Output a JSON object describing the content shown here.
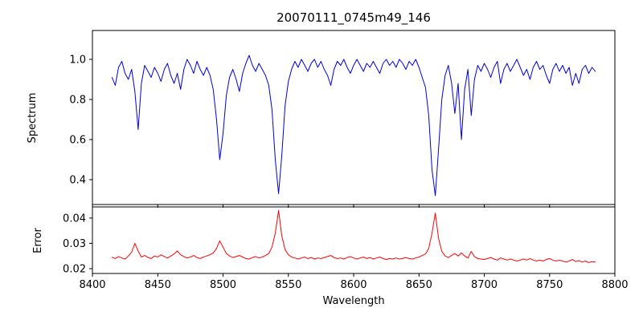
{
  "chart_data": {
    "type": "line",
    "title": "20070111_0745m49_146",
    "xlabel": "Wavelength",
    "xlim": [
      8400,
      8800
    ],
    "xticks": [
      8400,
      8450,
      8500,
      8550,
      8600,
      8650,
      8700,
      8750,
      8800
    ],
    "xticklabels": [
      "8400",
      "8450",
      "8500",
      "8550",
      "8600",
      "8650",
      "8700",
      "8750",
      "8800"
    ],
    "grid": false,
    "legend": "none",
    "x": [
      8415,
      8417.5,
      8420,
      8422.5,
      8425,
      8427.5,
      8430,
      8432.5,
      8435,
      8437.5,
      8440,
      8442.5,
      8445,
      8447.5,
      8450,
      8452.5,
      8455,
      8457.5,
      8460,
      8462.5,
      8465,
      8467.5,
      8470,
      8472.5,
      8475,
      8477.5,
      8480,
      8482.5,
      8485,
      8487.5,
      8490,
      8492.5,
      8495,
      8497.5,
      8500,
      8502.5,
      8505,
      8507.5,
      8510,
      8512.5,
      8515,
      8517.5,
      8520,
      8522.5,
      8525,
      8527.5,
      8530,
      8532.5,
      8535,
      8537.5,
      8540,
      8542.5,
      8545,
      8547.5,
      8550,
      8552.5,
      8555,
      8557.5,
      8560,
      8562.5,
      8565,
      8567.5,
      8570,
      8572.5,
      8575,
      8577.5,
      8580,
      8582.5,
      8585,
      8587.5,
      8590,
      8592.5,
      8595,
      8597.5,
      8600,
      8602.5,
      8605,
      8607.5,
      8610,
      8612.5,
      8615,
      8617.5,
      8620,
      8622.5,
      8625,
      8627.5,
      8630,
      8632.5,
      8635,
      8637.5,
      8640,
      8642.5,
      8645,
      8647.5,
      8650,
      8652.5,
      8655,
      8657.5,
      8660,
      8662.5,
      8665,
      8667.5,
      8670,
      8672.5,
      8675,
      8677.5,
      8680,
      8682.5,
      8685,
      8687.5,
      8690,
      8692.5,
      8695,
      8697.5,
      8700,
      8702.5,
      8705,
      8707.5,
      8710,
      8712.5,
      8715,
      8717.5,
      8720,
      8722.5,
      8725,
      8727.5,
      8730,
      8732.5,
      8735,
      8737.5,
      8740,
      8742.5,
      8745,
      8747.5,
      8750,
      8752.5,
      8755,
      8757.5,
      8760,
      8762.5,
      8765,
      8767.5,
      8770,
      8772.5,
      8775,
      8777.5,
      8780,
      8782.5,
      8785
    ],
    "series": [
      {
        "name": "Spectrum",
        "axis": "top",
        "color": "#0000dd",
        "ylim": [
          0.276,
          1.144
        ],
        "yticks": [
          0.4,
          0.6,
          0.8,
          1.0
        ],
        "yticklabels": [
          "0.4",
          "0.6",
          "0.8",
          "1.0"
        ],
        "values": [
          0.91,
          0.87,
          0.96,
          0.99,
          0.93,
          0.9,
          0.95,
          0.84,
          0.65,
          0.88,
          0.97,
          0.94,
          0.91,
          0.96,
          0.93,
          0.89,
          0.95,
          0.98,
          0.92,
          0.88,
          0.93,
          0.85,
          0.95,
          1.0,
          0.97,
          0.93,
          0.99,
          0.95,
          0.92,
          0.96,
          0.92,
          0.85,
          0.7,
          0.5,
          0.63,
          0.82,
          0.91,
          0.95,
          0.9,
          0.84,
          0.93,
          0.98,
          1.02,
          0.97,
          0.94,
          0.98,
          0.95,
          0.92,
          0.87,
          0.75,
          0.5,
          0.33,
          0.52,
          0.77,
          0.89,
          0.95,
          0.99,
          0.96,
          1.0,
          0.97,
          0.94,
          0.98,
          1.0,
          0.96,
          0.99,
          0.95,
          0.92,
          0.87,
          0.95,
          0.99,
          0.97,
          1.0,
          0.96,
          0.93,
          0.97,
          1.0,
          0.97,
          0.94,
          0.98,
          0.96,
          0.99,
          0.96,
          0.93,
          0.98,
          1.0,
          0.97,
          0.99,
          0.96,
          1.0,
          0.98,
          0.95,
          0.99,
          0.97,
          1.0,
          0.96,
          0.91,
          0.86,
          0.72,
          0.45,
          0.32,
          0.55,
          0.8,
          0.92,
          0.97,
          0.88,
          0.73,
          0.88,
          0.6,
          0.85,
          0.95,
          0.72,
          0.9,
          0.97,
          0.94,
          0.98,
          0.95,
          0.91,
          0.96,
          0.99,
          0.88,
          0.95,
          0.98,
          0.94,
          0.97,
          1.0,
          0.96,
          0.92,
          0.95,
          0.9,
          0.96,
          0.99,
          0.95,
          0.97,
          0.92,
          0.88,
          0.95,
          0.98,
          0.94,
          0.97,
          0.93,
          0.96,
          0.87,
          0.93,
          0.88,
          0.95,
          0.97,
          0.93,
          0.96,
          0.94
        ]
      },
      {
        "name": "Error",
        "axis": "bottom",
        "color": "#ff0000",
        "ylim": [
          0.0181,
          0.0444
        ],
        "yticks": [
          0.02,
          0.03,
          0.04
        ],
        "yticklabels": [
          "0.02",
          "0.03",
          "0.04"
        ],
        "values": [
          0.0245,
          0.024,
          0.0248,
          0.0242,
          0.0238,
          0.025,
          0.0265,
          0.03,
          0.027,
          0.0246,
          0.0252,
          0.0244,
          0.024,
          0.025,
          0.0246,
          0.0255,
          0.0248,
          0.0242,
          0.025,
          0.0258,
          0.027,
          0.0255,
          0.0248,
          0.0242,
          0.0246,
          0.0252,
          0.0244,
          0.024,
          0.0246,
          0.025,
          0.0255,
          0.0262,
          0.028,
          0.031,
          0.0285,
          0.026,
          0.025,
          0.0244,
          0.0248,
          0.0252,
          0.0246,
          0.024,
          0.0238,
          0.0244,
          0.0248,
          0.0242,
          0.0246,
          0.0252,
          0.026,
          0.0285,
          0.034,
          0.043,
          0.033,
          0.0275,
          0.0255,
          0.0246,
          0.0242,
          0.0238,
          0.0242,
          0.0246,
          0.024,
          0.0244,
          0.0238,
          0.0242,
          0.024,
          0.0244,
          0.0248,
          0.0252,
          0.0244,
          0.024,
          0.0242,
          0.0238,
          0.0244,
          0.0248,
          0.0242,
          0.0238,
          0.0242,
          0.0246,
          0.024,
          0.0244,
          0.0238,
          0.0242,
          0.0246,
          0.024,
          0.0236,
          0.024,
          0.0238,
          0.0242,
          0.0238,
          0.024,
          0.0244,
          0.024,
          0.0238,
          0.0242,
          0.0246,
          0.0252,
          0.0258,
          0.028,
          0.034,
          0.042,
          0.032,
          0.0268,
          0.025,
          0.0244,
          0.0252,
          0.026,
          0.025,
          0.0262,
          0.025,
          0.0242,
          0.0268,
          0.0248,
          0.024,
          0.0238,
          0.0236,
          0.024,
          0.0244,
          0.0238,
          0.0234,
          0.0242,
          0.0238,
          0.0234,
          0.0238,
          0.0234,
          0.023,
          0.0234,
          0.0238,
          0.0234,
          0.024,
          0.0234,
          0.023,
          0.0234,
          0.023,
          0.0236,
          0.024,
          0.0234,
          0.023,
          0.0234,
          0.023,
          0.0226,
          0.023,
          0.0236,
          0.0228,
          0.0232,
          0.0226,
          0.023,
          0.0224,
          0.0228,
          0.0226
        ]
      }
    ]
  }
}
